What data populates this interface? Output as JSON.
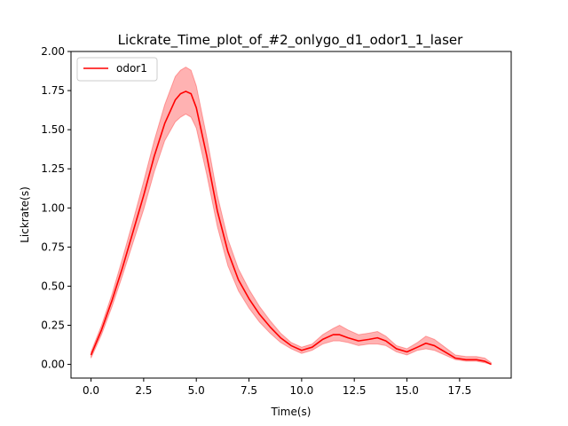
{
  "chart_data": {
    "type": "line",
    "title": "Lickrate_Time_plot_of_#2_onlygo_d1_odor1_1_laser",
    "xlabel": "Time(s)",
    "ylabel": "Lickrate(s)",
    "xlim": [
      -0.95,
      19.95
    ],
    "ylim": [
      -0.0875,
      2.0
    ],
    "x_ticks": [
      0.0,
      2.5,
      5.0,
      7.5,
      10.0,
      12.5,
      15.0,
      17.5
    ],
    "x_tick_labels": [
      "0.0",
      "2.5",
      "5.0",
      "7.5",
      "10.0",
      "12.5",
      "15.0",
      "17.5"
    ],
    "y_ticks": [
      0.0,
      0.25,
      0.5,
      0.75,
      1.0,
      1.25,
      1.5,
      1.75,
      2.0
    ],
    "y_tick_labels": [
      "0.00",
      "0.25",
      "0.50",
      "0.75",
      "1.00",
      "1.25",
      "1.50",
      "1.75",
      "2.00"
    ],
    "grid": false,
    "legend_position": "top-left",
    "series": [
      {
        "name": "odor1",
        "color": "#ff0000",
        "band_color": "#ff0000",
        "x": [
          0.0,
          0.5,
          1.0,
          1.5,
          2.0,
          2.5,
          3.0,
          3.5,
          4.0,
          4.25,
          4.5,
          4.75,
          5.0,
          5.5,
          6.0,
          6.5,
          7.0,
          7.5,
          8.0,
          8.5,
          9.0,
          9.5,
          10.0,
          10.5,
          11.0,
          11.5,
          11.8,
          12.2,
          12.7,
          13.2,
          13.6,
          14.0,
          14.5,
          15.0,
          15.5,
          15.9,
          16.3,
          16.8,
          17.3,
          17.8,
          18.3,
          18.7,
          19.0
        ],
        "y": [
          0.06,
          0.22,
          0.41,
          0.62,
          0.85,
          1.08,
          1.33,
          1.54,
          1.69,
          1.73,
          1.745,
          1.73,
          1.64,
          1.33,
          0.98,
          0.72,
          0.54,
          0.42,
          0.32,
          0.24,
          0.17,
          0.12,
          0.09,
          0.11,
          0.16,
          0.19,
          0.19,
          0.17,
          0.15,
          0.16,
          0.17,
          0.15,
          0.1,
          0.08,
          0.11,
          0.135,
          0.12,
          0.08,
          0.04,
          0.03,
          0.03,
          0.02,
          0.0
        ],
        "lower": [
          0.04,
          0.19,
          0.37,
          0.57,
          0.78,
          0.99,
          1.23,
          1.43,
          1.55,
          1.58,
          1.6,
          1.58,
          1.51,
          1.21,
          0.88,
          0.63,
          0.47,
          0.36,
          0.27,
          0.2,
          0.14,
          0.1,
          0.07,
          0.09,
          0.13,
          0.15,
          0.15,
          0.14,
          0.12,
          0.13,
          0.13,
          0.12,
          0.08,
          0.06,
          0.09,
          0.1,
          0.09,
          0.06,
          0.03,
          0.02,
          0.02,
          0.01,
          0.0
        ],
        "upper": [
          0.08,
          0.25,
          0.45,
          0.68,
          0.92,
          1.17,
          1.43,
          1.66,
          1.84,
          1.88,
          1.9,
          1.88,
          1.78,
          1.45,
          1.08,
          0.8,
          0.61,
          0.48,
          0.37,
          0.28,
          0.2,
          0.14,
          0.11,
          0.13,
          0.19,
          0.23,
          0.25,
          0.22,
          0.19,
          0.2,
          0.21,
          0.18,
          0.12,
          0.1,
          0.14,
          0.18,
          0.16,
          0.11,
          0.06,
          0.05,
          0.05,
          0.04,
          0.01
        ]
      }
    ]
  }
}
